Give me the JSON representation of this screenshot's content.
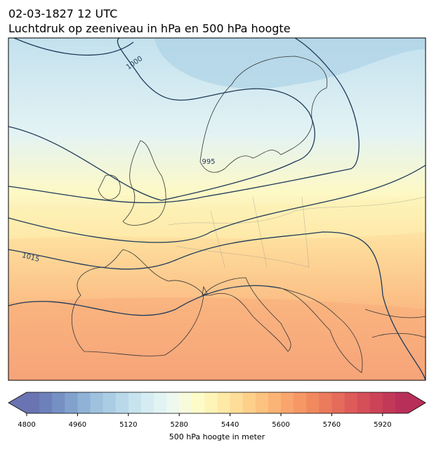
{
  "header": {
    "date": "02-03-1827 12 UTC",
    "title": "Luchtdruk op zeeniveau in hPa en 500 hPa hoogte"
  },
  "map": {
    "isobar_labels": [
      1000,
      995,
      1015
    ]
  },
  "colorbar": {
    "label": "500 hPa hoogte in meter",
    "range": [
      4800,
      6000
    ],
    "ticks": [
      4800,
      4960,
      5120,
      5280,
      5440,
      5600,
      5760,
      5920
    ],
    "colors": [
      "#6a74b2",
      "#6e80ba",
      "#7690c4",
      "#82a1cc",
      "#8fb2d6",
      "#9ec2de",
      "#abcde4",
      "#b9d8ea",
      "#c7e3ee",
      "#d5ecf2",
      "#e2f3f3",
      "#eef8ef",
      "#f7fbdc",
      "#fdfcc8",
      "#fef4b8",
      "#fee9a6",
      "#fedd98",
      "#fdd08a",
      "#fcc27f",
      "#fbb476",
      "#f9a56d",
      "#f69766",
      "#f1895f",
      "#ec7a5c",
      "#e56b5b",
      "#dd5c59",
      "#d44f58",
      "#cc4357",
      "#c23958",
      "#b8305a"
    ]
  }
}
